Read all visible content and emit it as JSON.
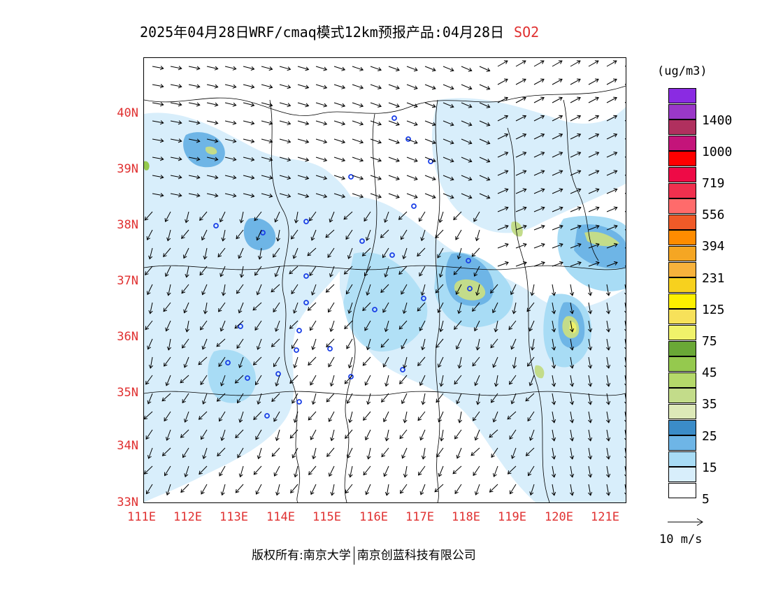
{
  "title": {
    "text": "2025年04月28日WRF/cmaq模式12km预报产品:04月28日",
    "pollutant": "SO2"
  },
  "map": {
    "lat_labels": [
      "40N",
      "39N",
      "38N",
      "37N",
      "36N",
      "35N",
      "34N",
      "33N"
    ],
    "lon_labels": [
      "111E",
      "112E",
      "113E",
      "114E",
      "115E",
      "116E",
      "117E",
      "118E",
      "119E",
      "120E",
      "121E"
    ],
    "lat_range": [
      33,
      41
    ],
    "lon_range": [
      111,
      121.4
    ]
  },
  "legend": {
    "unit": "(ug/m3)",
    "levels": [
      {
        "color": "#ffffff",
        "label": "5"
      },
      {
        "color": "#d8eefb",
        "label": ""
      },
      {
        "color": "#a8dcf5",
        "label": "15"
      },
      {
        "color": "#6eb5e6",
        "label": ""
      },
      {
        "color": "#3b8cc8",
        "label": "25"
      },
      {
        "color": "#dde9b8",
        "label": ""
      },
      {
        "color": "#c3dc8a",
        "label": "35"
      },
      {
        "color": "#b5d96a",
        "label": ""
      },
      {
        "color": "#95c94e",
        "label": "45"
      },
      {
        "color": "#6aa836",
        "label": ""
      },
      {
        "color": "#f0f26a",
        "label": "75"
      },
      {
        "color": "#f7e15a",
        "label": ""
      },
      {
        "color": "#fdf000",
        "label": "125"
      },
      {
        "color": "#f7d11e",
        "label": ""
      },
      {
        "color": "#f7b23c",
        "label": "231"
      },
      {
        "color": "#f5a623",
        "label": ""
      },
      {
        "color": "#ff8c00",
        "label": "394"
      },
      {
        "color": "#f05a28",
        "label": ""
      },
      {
        "color": "#ff6b6b",
        "label": "556"
      },
      {
        "color": "#f0304e",
        "label": ""
      },
      {
        "color": "#ee0a46",
        "label": "719"
      },
      {
        "color": "#ff0000",
        "label": ""
      },
      {
        "color": "#c4147a",
        "label": "1000"
      },
      {
        "color": "#b0305e",
        "label": ""
      },
      {
        "color": "#9a38c8",
        "label": "1400"
      },
      {
        "color": "#8a2be2",
        "label": ""
      }
    ]
  },
  "wind_scale": {
    "label": "10 m/s"
  },
  "copyright": {
    "left": "版权所有:南京大学",
    "right": "南京创蓝科技有限公司"
  }
}
